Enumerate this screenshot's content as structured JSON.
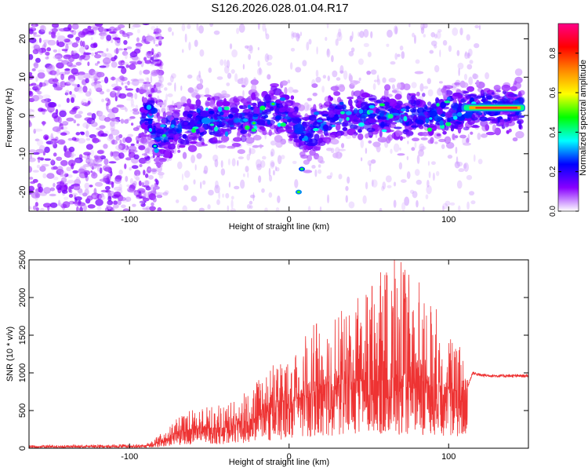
{
  "title": "S126.2026.028.01.04.R17",
  "chart_data": [
    {
      "type": "heatmap",
      "name": "spectrogram",
      "xlabel": "Height of straight line (km)",
      "ylabel": "Frequency (Hz)",
      "xlim": [
        -163,
        150
      ],
      "ylim": [
        -25,
        24
      ],
      "x_ticks": [
        -100,
        0,
        100
      ],
      "x_tick_labels": [
        "-100",
        "0",
        "100"
      ],
      "y_ticks": [
        -20,
        -10,
        0,
        10,
        20
      ],
      "y_tick_labels": [
        "-20",
        "-10",
        "0",
        "10",
        "20"
      ],
      "colorbar": {
        "label": "Normalized spectral amplitude",
        "range": [
          0,
          0.95
        ],
        "ticks": [
          0,
          0.2,
          0.4,
          0.6,
          0.8
        ],
        "tick_labels": [
          "0.0",
          "0.2",
          "0.4",
          "0.6",
          "0.8"
        ],
        "colors": [
          "#ffffff",
          "#8800ff",
          "#0000ff",
          "#00ffff",
          "#00ff00",
          "#ffff00",
          "#ff8800",
          "#ff0000",
          "#ff0088"
        ]
      },
      "band": {
        "description": "energy concentrated near 0 Hz for heights above -90 km",
        "center_points": [
          [
            -85,
            -6
          ],
          [
            -60,
            -2
          ],
          [
            -30,
            -1
          ],
          [
            -10,
            2
          ],
          [
            0,
            0
          ],
          [
            10,
            -5
          ],
          [
            30,
            0
          ],
          [
            60,
            0
          ],
          [
            90,
            0
          ],
          [
            120,
            2
          ],
          [
            148,
            2
          ]
        ],
        "strong_line": {
          "x_start": 108,
          "x_end": 148,
          "frequency": 2,
          "peak_amplitude": 0.9
        }
      },
      "features": [
        {
          "x": 6,
          "y": -20,
          "amp": 0.5
        },
        {
          "x": 8,
          "y": -14,
          "amp": 0.45
        },
        {
          "x": -10,
          "y": 3,
          "amp": 0.5
        },
        {
          "x": -22,
          "y": -2,
          "amp": 0.5
        },
        {
          "x": -84,
          "y": -8,
          "amp": 0.4
        },
        {
          "x": 115,
          "y": 2,
          "amp": 0.5
        }
      ]
    },
    {
      "type": "line",
      "name": "snr",
      "xlabel": "Height of straight line (km)",
      "ylabel": "SNR (10 * v/v)",
      "xlim": [
        -163,
        150
      ],
      "ylim": [
        0,
        2500
      ],
      "x_ticks": [
        -100,
        0,
        100
      ],
      "x_tick_labels": [
        "-100",
        "0",
        "100"
      ],
      "y_ticks": [
        0,
        500,
        1000,
        1500,
        2000,
        2500
      ],
      "y_tick_labels": [
        "0",
        "500",
        "1000",
        "1500",
        "2000",
        "2500"
      ],
      "color": "#ee3333",
      "envelope": {
        "x": [
          -163,
          -90,
          -80,
          -70,
          -60,
          -50,
          -40,
          -30,
          -20,
          -10,
          0,
          10,
          20,
          30,
          40,
          50,
          60,
          70,
          80,
          90,
          100,
          110,
          115,
          120,
          130,
          140,
          150
        ],
        "mean": [
          20,
          30,
          80,
          200,
          260,
          260,
          280,
          330,
          420,
          520,
          600,
          700,
          780,
          830,
          880,
          900,
          900,
          900,
          880,
          850,
          800,
          700,
          1000,
          970,
          960,
          960,
          960
        ],
        "peak": [
          40,
          60,
          200,
          400,
          550,
          550,
          600,
          700,
          900,
          1150,
          1300,
          1500,
          1750,
          1800,
          1950,
          2100,
          2450,
          2500,
          2300,
          2000,
          1600,
          1300,
          1050,
          1000,
          990,
          990,
          990
        ]
      },
      "notable_peaks": [
        [
          66,
          2500
        ],
        [
          60,
          2300
        ],
        [
          52,
          2150
        ],
        [
          49,
          2000
        ],
        [
          73,
          2050
        ],
        [
          4,
          1200
        ],
        [
          -10,
          1100
        ],
        [
          -20,
          850
        ]
      ]
    }
  ]
}
